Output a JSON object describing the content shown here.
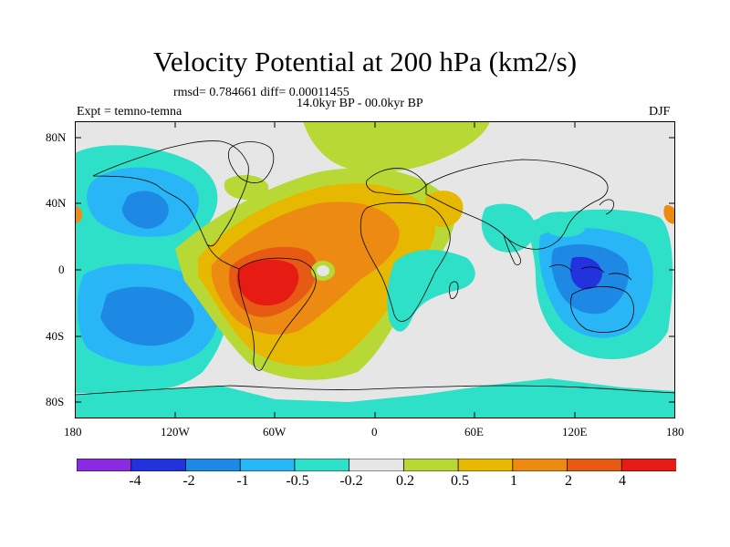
{
  "title": "Velocity Potential at 200 hPa (km2/s)",
  "stats": "rmsd= 0.784661 diff= 0.00011455",
  "period": "14.0kyr BP - 00.0kyr BP",
  "experiment": "Expt = temno-temna",
  "season": "DJF",
  "axes": {
    "lat_ticks": [
      "80N",
      "40N",
      "0",
      "40S",
      "80S"
    ],
    "lon_ticks": [
      "180",
      "120W",
      "60W",
      "0",
      "60E",
      "120E",
      "180"
    ]
  },
  "colorbar": {
    "labels": [
      "-4",
      "-2",
      "-1",
      "-0.5",
      "-0.2",
      "0.2",
      "0.5",
      "1",
      "2",
      "4"
    ],
    "colors": [
      "#8a2be2",
      "#2233dd",
      "#1e88e5",
      "#29b6f6",
      "#2ee0c8",
      "#e6e6e6",
      "#b8d935",
      "#e6b800",
      "#ec8a12",
      "#e65a14",
      "#e61c14"
    ]
  }
}
